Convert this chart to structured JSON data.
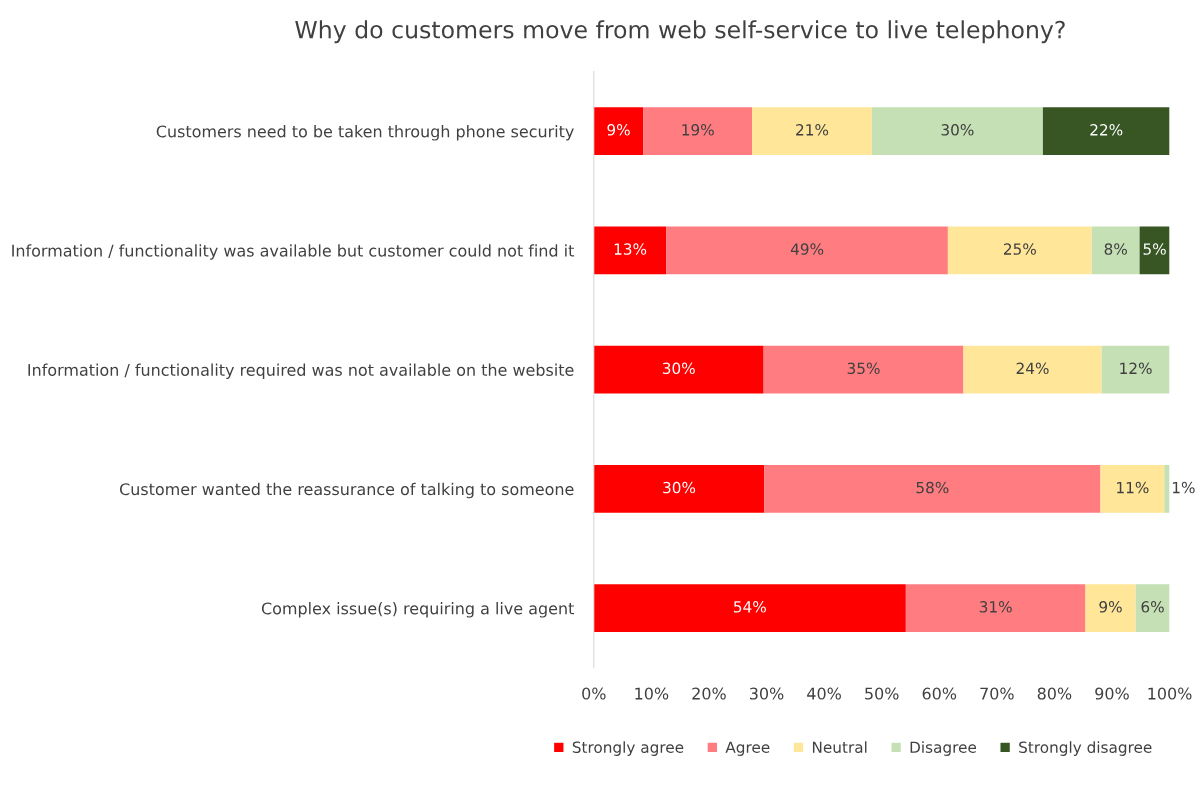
{
  "chart_data": {
    "type": "bar",
    "orientation": "horizontal",
    "stacked": true,
    "title": "Why do customers move from web self-service to live telephony?",
    "categories": [
      "Customers need to be taken through phone security",
      "Information / functionality was available but customer could not find it",
      "Information / functionality required was not available on the website",
      "Customer wanted the reassurance of talking to someone",
      "Complex issue(s) requiring a live agent"
    ],
    "series": [
      {
        "name": "Strongly agree",
        "color": "#ff0000",
        "values": [
          8.6,
          12.6,
          29.5,
          29.6,
          54.2
        ],
        "value_labels": [
          "9%",
          "13%",
          "30%",
          "30%",
          "54%"
        ]
      },
      {
        "name": "Agree",
        "color": "#ff7c80",
        "values": [
          18.9,
          48.9,
          34.7,
          58.4,
          31.2
        ],
        "value_labels": [
          "19%",
          "49%",
          "35%",
          "58%",
          "31%"
        ]
      },
      {
        "name": "Neutral",
        "color": "#ffe699",
        "values": [
          20.8,
          25.0,
          24.0,
          11.1,
          8.7
        ],
        "value_labels": [
          "21%",
          "25%",
          "24%",
          "11%",
          "9%"
        ]
      },
      {
        "name": "Disagree",
        "color": "#c5e0b4",
        "values": [
          29.7,
          8.3,
          11.8,
          0.9,
          5.9
        ],
        "value_labels": [
          "30%",
          "8%",
          "12%",
          "1%",
          "6%"
        ]
      },
      {
        "name": "Strongly disagree",
        "color": "#375623",
        "values": [
          22.0,
          5.2,
          null,
          null,
          null
        ],
        "value_labels": [
          "22%",
          "5%",
          null,
          null,
          null
        ]
      }
    ],
    "xlim": [
      0,
      100
    ],
    "xticks": [
      {
        "value": 0,
        "label": "0%"
      },
      {
        "value": 10,
        "label": "10%"
      },
      {
        "value": 20,
        "label": "20%"
      },
      {
        "value": 30,
        "label": "30%"
      },
      {
        "value": 40,
        "label": "40%"
      },
      {
        "value": 50,
        "label": "50%"
      },
      {
        "value": 60,
        "label": "60%"
      },
      {
        "value": 70,
        "label": "70%"
      },
      {
        "value": 80,
        "label": "80%"
      },
      {
        "value": 90,
        "label": "90%"
      },
      {
        "value": 100,
        "label": "100%"
      }
    ],
    "grid": false,
    "legend": "bottom"
  }
}
